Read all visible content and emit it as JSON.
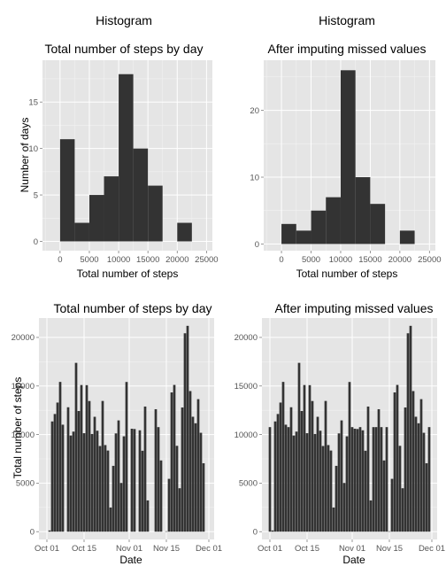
{
  "chart_data": [
    {
      "type": "bar",
      "supertitle": "Histogram",
      "title": "Total number of steps by day",
      "xlabel": "Total number of steps",
      "ylabel": "Number of days",
      "xlim": [
        -3000,
        26000
      ],
      "ylim": [
        -1,
        19.5
      ],
      "xticks": [
        0,
        5000,
        10000,
        15000,
        20000,
        25000
      ],
      "yticks": [
        0,
        5,
        10,
        15
      ],
      "bins": [
        {
          "x0": 0,
          "x1": 2500,
          "count": 11
        },
        {
          "x0": 2500,
          "x1": 5000,
          "count": 2
        },
        {
          "x0": 5000,
          "x1": 7500,
          "count": 5
        },
        {
          "x0": 7500,
          "x1": 10000,
          "count": 7
        },
        {
          "x0": 10000,
          "x1": 12500,
          "count": 18
        },
        {
          "x0": 12500,
          "x1": 15000,
          "count": 10
        },
        {
          "x0": 15000,
          "x1": 17500,
          "count": 6
        },
        {
          "x0": 17500,
          "x1": 20000,
          "count": 0
        },
        {
          "x0": 20000,
          "x1": 22500,
          "count": 2
        }
      ],
      "color": "#333333",
      "panel_bg": "#e5e5e5",
      "grid": true
    },
    {
      "type": "bar",
      "supertitle": "Histogram",
      "title": "After imputing missed values",
      "xlabel": "Total number of steps",
      "ylabel": "",
      "xlim": [
        -3000,
        26000
      ],
      "ylim": [
        -1,
        27.5
      ],
      "xticks": [
        0,
        5000,
        10000,
        15000,
        20000,
        25000
      ],
      "yticks": [
        0,
        10,
        20
      ],
      "bins": [
        {
          "x0": 0,
          "x1": 2500,
          "count": 3
        },
        {
          "x0": 2500,
          "x1": 5000,
          "count": 2
        },
        {
          "x0": 5000,
          "x1": 7500,
          "count": 5
        },
        {
          "x0": 7500,
          "x1": 10000,
          "count": 7
        },
        {
          "x0": 10000,
          "x1": 12500,
          "count": 26
        },
        {
          "x0": 12500,
          "x1": 15000,
          "count": 10
        },
        {
          "x0": 15000,
          "x1": 17500,
          "count": 6
        },
        {
          "x0": 17500,
          "x1": 20000,
          "count": 0
        },
        {
          "x0": 20000,
          "x1": 22500,
          "count": 2
        }
      ],
      "color": "#333333",
      "panel_bg": "#e5e5e5",
      "grid": true
    },
    {
      "type": "bar",
      "title": "Total number of steps by day",
      "xlabel": "Date",
      "ylabel": "Total number of steps",
      "xlim": [
        "2012-09-28",
        "2012-12-03"
      ],
      "ylim": [
        -800,
        22000
      ],
      "xticks": [
        {
          "date": "2012-10-01",
          "label": "Oct 01"
        },
        {
          "date": "2012-10-15",
          "label": "Oct 15"
        },
        {
          "date": "2012-11-01",
          "label": "Nov 01"
        },
        {
          "date": "2012-11-15",
          "label": "Nov 15"
        },
        {
          "date": "2012-12-01",
          "label": "Dec 01"
        }
      ],
      "yticks": [
        0,
        5000,
        10000,
        15000,
        20000
      ],
      "dates": [
        "2012-10-01",
        "2012-10-02",
        "2012-10-03",
        "2012-10-04",
        "2012-10-05",
        "2012-10-06",
        "2012-10-07",
        "2012-10-08",
        "2012-10-09",
        "2012-10-10",
        "2012-10-11",
        "2012-10-12",
        "2012-10-13",
        "2012-10-14",
        "2012-10-15",
        "2012-10-16",
        "2012-10-17",
        "2012-10-18",
        "2012-10-19",
        "2012-10-20",
        "2012-10-21",
        "2012-10-22",
        "2012-10-23",
        "2012-10-24",
        "2012-10-25",
        "2012-10-26",
        "2012-10-27",
        "2012-10-28",
        "2012-10-29",
        "2012-10-30",
        "2012-10-31",
        "2012-11-01",
        "2012-11-02",
        "2012-11-03",
        "2012-11-04",
        "2012-11-05",
        "2012-11-06",
        "2012-11-07",
        "2012-11-08",
        "2012-11-09",
        "2012-11-10",
        "2012-11-11",
        "2012-11-12",
        "2012-11-13",
        "2012-11-14",
        "2012-11-15",
        "2012-11-16",
        "2012-11-17",
        "2012-11-18",
        "2012-11-19",
        "2012-11-20",
        "2012-11-21",
        "2012-11-22",
        "2012-11-23",
        "2012-11-24",
        "2012-11-25",
        "2012-11-26",
        "2012-11-27",
        "2012-11-28",
        "2012-11-29",
        "2012-11-30"
      ],
      "values": [
        0,
        126,
        11352,
        12116,
        13294,
        15420,
        11015,
        0,
        12811,
        9900,
        10304,
        17382,
        12426,
        15098,
        10139,
        15084,
        13452,
        10056,
        11829,
        10395,
        8821,
        13460,
        8918,
        8355,
        2492,
        6778,
        10119,
        11458,
        5018,
        9819,
        15414,
        0,
        10600,
        10571,
        0,
        10439,
        8334,
        12883,
        3219,
        0,
        0,
        12608,
        10765,
        7336,
        0,
        41,
        5441,
        14339,
        15110,
        8841,
        4472,
        12787,
        20427,
        21194,
        14478,
        11834,
        11162,
        13646,
        10183,
        7047,
        0
      ],
      "color": "#333333",
      "panel_bg": "#e5e5e5",
      "grid": true
    },
    {
      "type": "bar",
      "title": "After imputing missed values",
      "xlabel": "Date",
      "ylabel": "",
      "xlim": [
        "2012-09-28",
        "2012-12-03"
      ],
      "ylim": [
        -800,
        22000
      ],
      "xticks": [
        {
          "date": "2012-10-01",
          "label": "Oct 01"
        },
        {
          "date": "2012-10-15",
          "label": "Oct 15"
        },
        {
          "date": "2012-11-01",
          "label": "Nov 01"
        },
        {
          "date": "2012-11-15",
          "label": "Nov 15"
        },
        {
          "date": "2012-12-01",
          "label": "Dec 01"
        }
      ],
      "yticks": [
        0,
        5000,
        10000,
        15000,
        20000
      ],
      "dates": [
        "2012-10-01",
        "2012-10-02",
        "2012-10-03",
        "2012-10-04",
        "2012-10-05",
        "2012-10-06",
        "2012-10-07",
        "2012-10-08",
        "2012-10-09",
        "2012-10-10",
        "2012-10-11",
        "2012-10-12",
        "2012-10-13",
        "2012-10-14",
        "2012-10-15",
        "2012-10-16",
        "2012-10-17",
        "2012-10-18",
        "2012-10-19",
        "2012-10-20",
        "2012-10-21",
        "2012-10-22",
        "2012-10-23",
        "2012-10-24",
        "2012-10-25",
        "2012-10-26",
        "2012-10-27",
        "2012-10-28",
        "2012-10-29",
        "2012-10-30",
        "2012-10-31",
        "2012-11-01",
        "2012-11-02",
        "2012-11-03",
        "2012-11-04",
        "2012-11-05",
        "2012-11-06",
        "2012-11-07",
        "2012-11-08",
        "2012-11-09",
        "2012-11-10",
        "2012-11-11",
        "2012-11-12",
        "2012-11-13",
        "2012-11-14",
        "2012-11-15",
        "2012-11-16",
        "2012-11-17",
        "2012-11-18",
        "2012-11-19",
        "2012-11-20",
        "2012-11-21",
        "2012-11-22",
        "2012-11-23",
        "2012-11-24",
        "2012-11-25",
        "2012-11-26",
        "2012-11-27",
        "2012-11-28",
        "2012-11-29",
        "2012-11-30"
      ],
      "values": [
        10766,
        126,
        11352,
        12116,
        13294,
        15420,
        11015,
        10766,
        12811,
        9900,
        10304,
        17382,
        12426,
        15098,
        10139,
        15084,
        13452,
        10056,
        11829,
        10395,
        8821,
        13460,
        8918,
        8355,
        2492,
        6778,
        10119,
        11458,
        5018,
        9819,
        15414,
        10766,
        10600,
        10571,
        10766,
        10439,
        8334,
        12883,
        3219,
        10766,
        10766,
        12608,
        10765,
        7336,
        10766,
        41,
        5441,
        14339,
        15110,
        8841,
        4472,
        12787,
        20427,
        21194,
        14478,
        11834,
        11162,
        13646,
        10183,
        7047,
        10766
      ],
      "color": "#333333",
      "panel_bg": "#e5e5e5",
      "grid": true
    }
  ]
}
